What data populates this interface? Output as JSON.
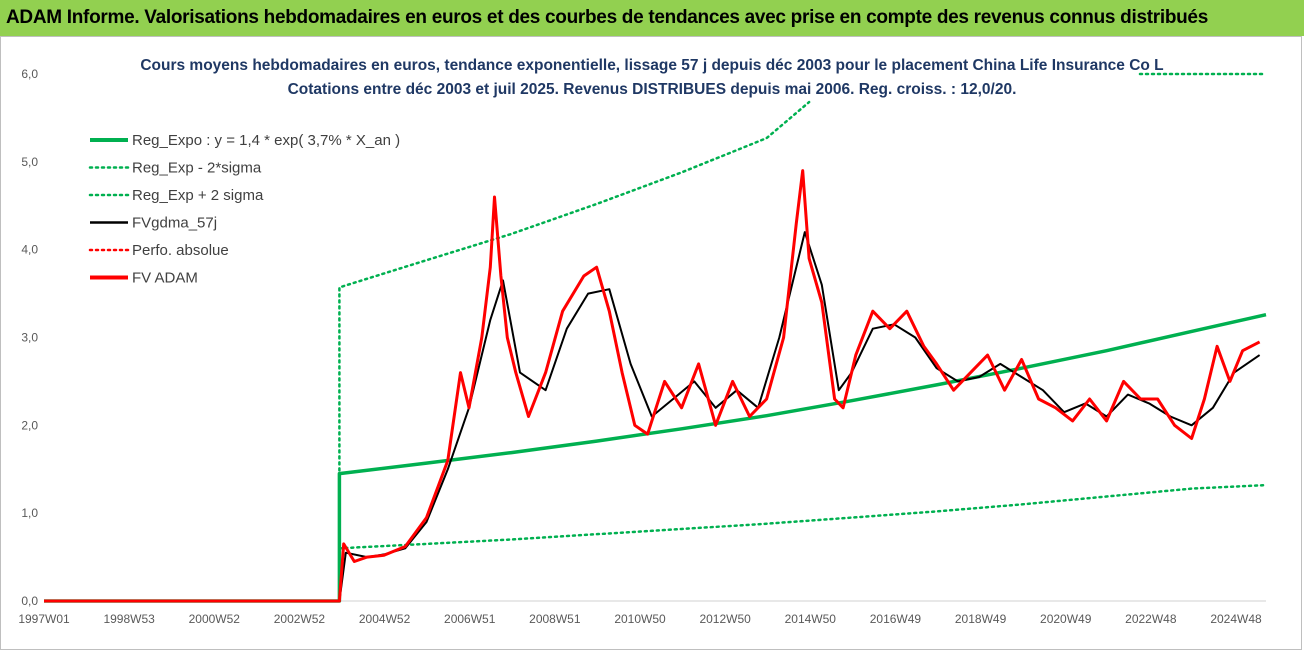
{
  "banner": {
    "text": "ADAM Informe. Valorisations hebdomadaires en euros et des courbes de tendances avec prise en compte des revenus connus distribués",
    "color": "#92D050"
  },
  "chart_data": {
    "type": "line",
    "title": "Cours moyens hebdomadaires en euros, tendance exponentielle, lissage 57 j depuis déc 2003 pour le placement China Life Insurance Co L",
    "subtitle": "Cotations entre déc 2003 et juil 2025. Revenus DISTRIBUES depuis mai 2006. Reg. croiss. : 12,0/20.",
    "xlabel": "",
    "ylabel": "",
    "ylim": [
      0,
      6
    ],
    "yticks": [
      "0,0",
      "1,0",
      "2,0",
      "3,0",
      "4,0",
      "5,0",
      "6,0"
    ],
    "xticks": [
      "1997W01",
      "1998W53",
      "2000W52",
      "2002W52",
      "2004W52",
      "2006W51",
      "2008W51",
      "2010W50",
      "2012W50",
      "2014W50",
      "2016W49",
      "2018W49",
      "2020W49",
      "2022W48",
      "2024W48"
    ],
    "xlim_years": [
      1997.0,
      2025.75
    ],
    "grid": false,
    "legend_position": "top-left",
    "legend": [
      {
        "name": "Reg_Expo : y = 1,4 * exp( 3,7% *  X_an )",
        "color": "#00B050",
        "style": "solid-thick"
      },
      {
        "name": "Reg_Exp - 2*sigma",
        "color": "#00B050",
        "style": "dotted"
      },
      {
        "name": "Reg_Exp + 2 sigma",
        "color": "#00B050",
        "style": "dotted"
      },
      {
        "name": "FVgdma_57j",
        "color": "#000000",
        "style": "solid"
      },
      {
        "name": "Perfo. absolue",
        "color": "#FF0000",
        "style": "dotted"
      },
      {
        "name": "FV ADAM",
        "color": "#FF0000",
        "style": "solid-thick"
      }
    ],
    "series": [
      {
        "name": "Reg_Expo : y = 1,4 * exp( 3,7% *  X_an )",
        "color": "#00B050",
        "x": [
          1997.0,
          2003.95,
          2003.95,
          2006.0,
          2008.0,
          2010.0,
          2012.0,
          2014.0,
          2016.0,
          2018.0,
          2020.0,
          2022.0,
          2024.0,
          2025.75
        ],
        "y": [
          0.0,
          0.0,
          1.45,
          1.57,
          1.69,
          1.82,
          1.96,
          2.11,
          2.28,
          2.46,
          2.65,
          2.85,
          3.07,
          3.26
        ]
      },
      {
        "name": "Reg_Exp - 2*sigma",
        "color": "#00B050",
        "x": [
          1997.0,
          2003.95,
          2003.95,
          2006.0,
          2008.0,
          2010.0,
          2012.0,
          2014.0,
          2016.0,
          2018.0,
          2020.0,
          2022.0,
          2024.0,
          2025.75
        ],
        "y": [
          0.0,
          0.0,
          0.6,
          0.65,
          0.7,
          0.76,
          0.82,
          0.88,
          0.95,
          1.02,
          1.1,
          1.19,
          1.28,
          1.32
        ]
      },
      {
        "name": "Reg_Exp + 2 sigma",
        "color": "#00B050",
        "x": [
          1997.0,
          2003.95,
          2003.95,
          2006.0,
          2008.0,
          2010.0,
          2012.0,
          2014.0,
          2015.0,
          2015.01,
          2025.75
        ],
        "y": [
          0.0,
          0.0,
          3.57,
          3.88,
          4.18,
          4.52,
          4.88,
          5.27,
          5.68,
          null,
          null
        ]
      },
      {
        "name": "FVgdma_57j",
        "color": "#000000",
        "x": [
          1997.0,
          2003.95,
          2004.1,
          2004.6,
          2005.0,
          2005.5,
          2006.0,
          2006.5,
          2007.0,
          2007.5,
          2007.8,
          2008.2,
          2008.8,
          2009.3,
          2009.8,
          2010.3,
          2010.8,
          2011.3,
          2011.8,
          2012.3,
          2012.8,
          2013.3,
          2013.8,
          2014.3,
          2014.9,
          2015.3,
          2015.7,
          2016.0,
          2016.5,
          2017.0,
          2017.5,
          2018.0,
          2018.5,
          2019.0,
          2019.5,
          2020.0,
          2020.5,
          2021.0,
          2021.5,
          2022.0,
          2022.5,
          2023.0,
          2023.5,
          2024.0,
          2024.5,
          2025.0,
          2025.6
        ],
        "y": [
          0.0,
          0.0,
          0.55,
          0.5,
          0.53,
          0.6,
          0.9,
          1.5,
          2.2,
          3.2,
          3.65,
          2.6,
          2.4,
          3.1,
          3.5,
          3.55,
          2.7,
          2.1,
          2.3,
          2.5,
          2.2,
          2.4,
          2.2,
          3.0,
          4.2,
          3.6,
          2.4,
          2.6,
          3.1,
          3.15,
          3.0,
          2.65,
          2.5,
          2.55,
          2.7,
          2.55,
          2.4,
          2.15,
          2.25,
          2.1,
          2.35,
          2.25,
          2.1,
          2.0,
          2.2,
          2.6,
          2.8
        ]
      },
      {
        "name": "FV ADAM",
        "color": "#FF0000",
        "x": [
          1997.0,
          2003.95,
          2004.05,
          2004.3,
          2004.6,
          2005.0,
          2005.5,
          2006.0,
          2006.5,
          2006.8,
          2007.0,
          2007.3,
          2007.5,
          2007.6,
          2007.75,
          2007.9,
          2008.1,
          2008.4,
          2008.8,
          2009.2,
          2009.7,
          2010.0,
          2010.3,
          2010.6,
          2010.9,
          2011.2,
          2011.6,
          2012.0,
          2012.4,
          2012.8,
          2013.2,
          2013.6,
          2014.0,
          2014.4,
          2014.7,
          2014.85,
          2015.0,
          2015.3,
          2015.6,
          2015.8,
          2016.1,
          2016.5,
          2016.9,
          2017.3,
          2017.7,
          2018.0,
          2018.4,
          2018.8,
          2019.2,
          2019.6,
          2020.0,
          2020.4,
          2020.8,
          2021.2,
          2021.6,
          2022.0,
          2022.4,
          2022.8,
          2023.2,
          2023.6,
          2024.0,
          2024.3,
          2024.6,
          2024.9,
          2025.2,
          2025.6
        ],
        "y": [
          0.0,
          0.0,
          0.65,
          0.45,
          0.5,
          0.52,
          0.62,
          0.95,
          1.6,
          2.6,
          2.2,
          3.0,
          3.8,
          4.6,
          3.7,
          3.0,
          2.6,
          2.1,
          2.6,
          3.3,
          3.7,
          3.8,
          3.3,
          2.6,
          2.0,
          1.9,
          2.5,
          2.2,
          2.7,
          2.0,
          2.5,
          2.1,
          2.3,
          3.0,
          4.3,
          4.9,
          3.9,
          3.4,
          2.3,
          2.2,
          2.8,
          3.3,
          3.1,
          3.3,
          2.9,
          2.7,
          2.4,
          2.6,
          2.8,
          2.4,
          2.75,
          2.3,
          2.2,
          2.05,
          2.3,
          2.05,
          2.5,
          2.3,
          2.3,
          2.0,
          1.85,
          2.3,
          2.9,
          2.5,
          2.85,
          2.95
        ]
      }
    ]
  }
}
